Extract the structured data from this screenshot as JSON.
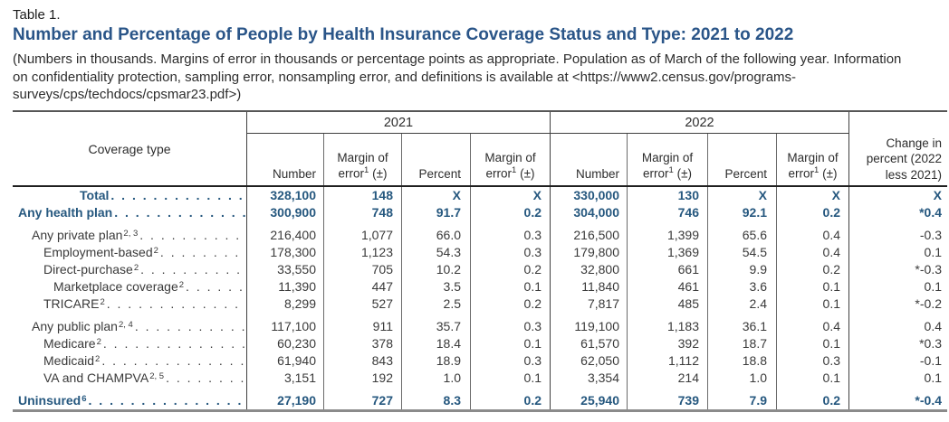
{
  "page": {
    "table_label": "Table 1.",
    "title": "Number and Percentage of People by Health Insurance Coverage Status and Type: 2021 to 2022",
    "note": "(Numbers in thousands. Margins of error in thousands or percentage points as appropriate. Population as of March of the following year. Information on confidentiality protection, sampling error, nonsampling error, and definitions is available at <https://www2.census.gov/programs-surveys/cps/techdocs/cpsmar23.pdf>)"
  },
  "colors": {
    "title_blue": "#2A5588",
    "bold_row_blue": "#26587F",
    "body_text": "#3A3A3A"
  },
  "header": {
    "coverage_type": "Coverage type",
    "year_2021": "2021",
    "year_2022": "2022",
    "number": "Number",
    "moe_line1": "Margin of",
    "moe_word": "error",
    "moe_sup": "1",
    "moe_pm": " (±)",
    "percent": "Percent",
    "change": "Change in percent (2022 less 2021)"
  },
  "rows": [
    {
      "label": "Total",
      "sup": "",
      "class": "total",
      "gap": false,
      "cells": [
        "328,100",
        "148",
        "X",
        "X",
        "330,000",
        "130",
        "X",
        "X",
        "X"
      ]
    },
    {
      "label": "Any health plan",
      "sup": "",
      "class": "bold",
      "gap": false,
      "cells": [
        "300,900",
        "748",
        "91.7",
        "0.2",
        "304,000",
        "746",
        "92.1",
        "0.2",
        "*0.4"
      ]
    },
    {
      "label": "Any private plan",
      "sup": "2, 3",
      "class": "l1",
      "gap": true,
      "cells": [
        "216,400",
        "1,077",
        "66.0",
        "0.3",
        "216,500",
        "1,399",
        "65.6",
        "0.4",
        "-0.3"
      ]
    },
    {
      "label": "Employment-based",
      "sup": "2",
      "class": "l2",
      "gap": false,
      "cells": [
        "178,300",
        "1,123",
        "54.3",
        "0.3",
        "179,800",
        "1,369",
        "54.5",
        "0.4",
        "0.1"
      ]
    },
    {
      "label": "Direct-purchase",
      "sup": "2",
      "class": "l2",
      "gap": false,
      "cells": [
        "33,550",
        "705",
        "10.2",
        "0.2",
        "32,800",
        "661",
        "9.9",
        "0.2",
        "*-0.3"
      ]
    },
    {
      "label": "Marketplace coverage",
      "sup": "2",
      "class": "l3",
      "gap": false,
      "cells": [
        "11,390",
        "447",
        "3.5",
        "0.1",
        "11,840",
        "461",
        "3.6",
        "0.1",
        "0.1"
      ]
    },
    {
      "label": "TRICARE",
      "sup": "2",
      "class": "l2",
      "gap": false,
      "cells": [
        "8,299",
        "527",
        "2.5",
        "0.2",
        "7,817",
        "485",
        "2.4",
        "0.1",
        "*-0.2"
      ]
    },
    {
      "label": "Any public plan",
      "sup": "2, 4",
      "class": "l1",
      "gap": true,
      "cells": [
        "117,100",
        "911",
        "35.7",
        "0.3",
        "119,100",
        "1,183",
        "36.1",
        "0.4",
        "0.4"
      ]
    },
    {
      "label": "Medicare",
      "sup": "2",
      "class": "l2",
      "gap": false,
      "cells": [
        "60,230",
        "378",
        "18.4",
        "0.1",
        "61,570",
        "392",
        "18.7",
        "0.1",
        "*0.3"
      ]
    },
    {
      "label": "Medicaid",
      "sup": "2",
      "class": "l2",
      "gap": false,
      "cells": [
        "61,940",
        "843",
        "18.9",
        "0.3",
        "62,050",
        "1,112",
        "18.8",
        "0.3",
        "-0.1"
      ]
    },
    {
      "label": "VA and CHAMPVA",
      "sup": "2, 5",
      "class": "l2",
      "gap": false,
      "cells": [
        "3,151",
        "192",
        "1.0",
        "0.1",
        "3,354",
        "214",
        "1.0",
        "0.1",
        "0.1"
      ]
    },
    {
      "label": "Uninsured",
      "sup": "6",
      "class": "bold",
      "gap": true,
      "cells": [
        "27,190",
        "727",
        "8.3",
        "0.2",
        "25,940",
        "739",
        "7.9",
        "0.2",
        "*-0.4"
      ]
    }
  ]
}
